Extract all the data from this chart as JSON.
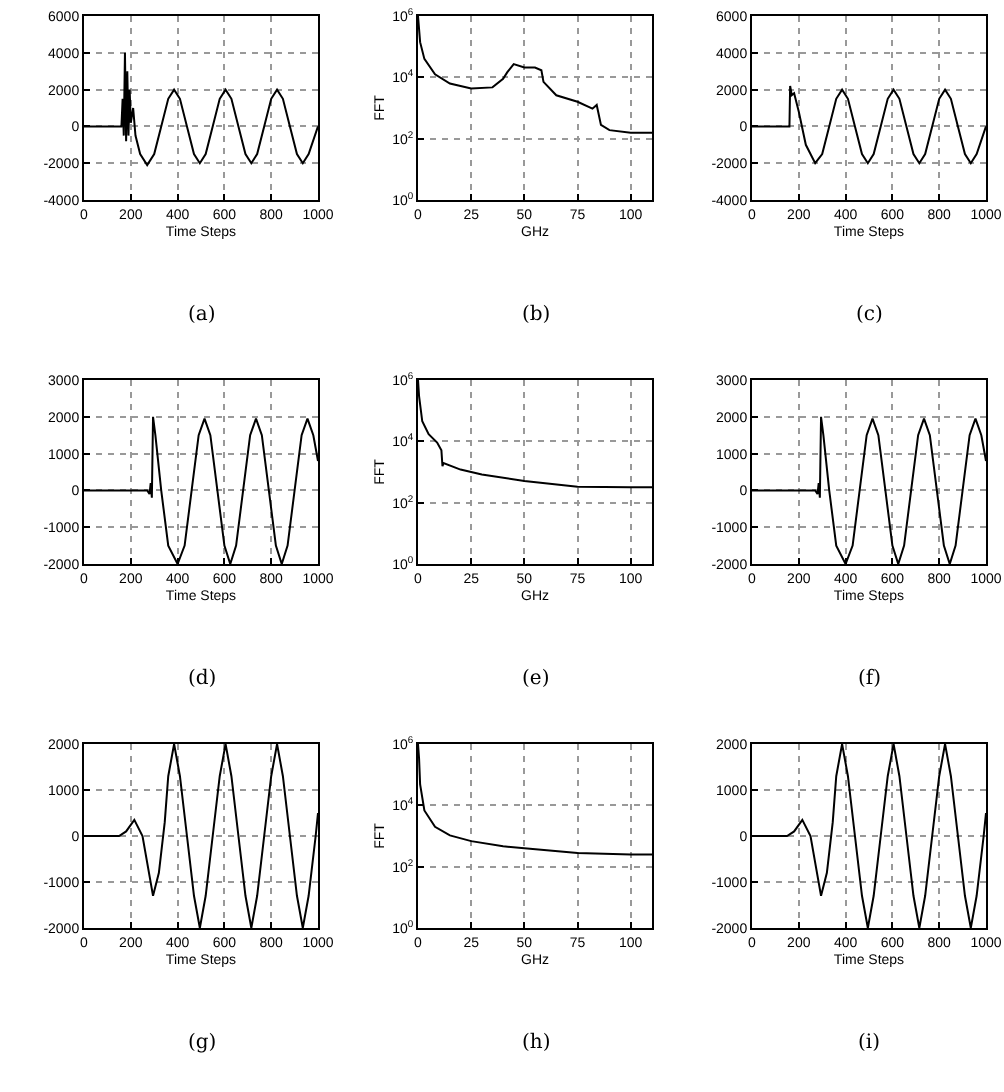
{
  "chart_data": [
    {
      "type": "line",
      "xlabel": "Time Steps",
      "annotations": [
        "(a)"
      ],
      "xlim": [
        0,
        1000
      ],
      "ylim": [
        -4000,
        6000
      ],
      "xticks": [
        0,
        200,
        400,
        600,
        800,
        1000
      ],
      "yticks": [
        -4000,
        -2000,
        0,
        2000,
        4000,
        6000
      ],
      "grid": true,
      "x": [
        0,
        160,
        165,
        170,
        175,
        180,
        185,
        190,
        195,
        200,
        210,
        220,
        240,
        270,
        300,
        330,
        360,
        385,
        410,
        440,
        470,
        495,
        520,
        550,
        580,
        605,
        630,
        660,
        690,
        715,
        740,
        770,
        800,
        825,
        850,
        880,
        910,
        935,
        960,
        1000
      ],
      "series": [
        {
          "color": "#000000",
          "values": [
            0,
            0,
            1500,
            -500,
            4000,
            -800,
            3000,
            -500,
            2000,
            200,
            1000,
            -500,
            -1500,
            -2100,
            -1500,
            0,
            1500,
            2000,
            1500,
            0,
            -1500,
            -2000,
            -1500,
            0,
            1500,
            2000,
            1500,
            0,
            -1500,
            -2000,
            -1500,
            0,
            1500,
            2000,
            1500,
            0,
            -1500,
            -2000,
            -1500,
            0
          ]
        }
      ]
    },
    {
      "type": "line",
      "xlabel": "GHz",
      "ylabel": "FFT",
      "annotations": [
        "(b)"
      ],
      "xlim": [
        0,
        110
      ],
      "ylim": [
        1,
        1000000
      ],
      "xticks": [
        0,
        25,
        50,
        75,
        100
      ],
      "yticks": [
        {
          "value": 1,
          "label": "10$^{0}$"
        },
        {
          "value": 100,
          "label": "10$^{2}$"
        },
        {
          "value": 10000,
          "label": "10$^{4}$"
        },
        {
          "value": 1000000,
          "label": "10$^{6}$"
        }
      ],
      "log": "y",
      "grid": true,
      "x": [
        0,
        1,
        3,
        8,
        15,
        25,
        35,
        40,
        42,
        45,
        50,
        55,
        58,
        59,
        65,
        75,
        82,
        84,
        86,
        90,
        100,
        110
      ],
      "series": [
        {
          "color": "#000000",
          "values": [
            1000000,
            140000,
            40000,
            12600,
            6300,
            4300,
            4700,
            8900,
            14800,
            27000,
            21000,
            21000,
            17000,
            7100,
            2600,
            1600,
            950,
            1260,
            280,
            190,
            155,
            155
          ]
        }
      ]
    },
    {
      "type": "line",
      "xlabel": "Time Steps",
      "annotations": [
        "(c)"
      ],
      "xlim": [
        0,
        1000
      ],
      "ylim": [
        -4000,
        6000
      ],
      "xticks": [
        0,
        200,
        400,
        600,
        800,
        1000
      ],
      "yticks": [
        -4000,
        -2000,
        0,
        2000,
        4000,
        6000
      ],
      "grid": true,
      "x": [
        0,
        160,
        163,
        170,
        180,
        200,
        230,
        270,
        300,
        330,
        360,
        385,
        410,
        440,
        470,
        495,
        520,
        550,
        580,
        605,
        630,
        660,
        690,
        715,
        740,
        770,
        800,
        825,
        850,
        880,
        910,
        935,
        960,
        1000
      ],
      "series": [
        {
          "color": "#000000",
          "values": [
            0,
            0,
            2200,
            1700,
            1800,
            800,
            -1000,
            -2000,
            -1500,
            0,
            1500,
            2000,
            1500,
            0,
            -1500,
            -2000,
            -1500,
            0,
            1500,
            2000,
            1500,
            0,
            -1500,
            -2000,
            -1500,
            0,
            1500,
            2000,
            1500,
            0,
            -1500,
            -2000,
            -1500,
            0
          ]
        }
      ]
    },
    {
      "type": "line",
      "xlabel": "Time Steps",
      "annotations": [
        "(d)"
      ],
      "xlim": [
        0,
        1000
      ],
      "ylim": [
        -2000,
        3000
      ],
      "xticks": [
        0,
        200,
        400,
        600,
        800,
        1000
      ],
      "yticks": [
        -2000,
        -1000,
        0,
        1000,
        2000,
        3000
      ],
      "grid": true,
      "x": [
        0,
        270,
        280,
        285,
        290,
        295,
        305,
        330,
        360,
        400,
        430,
        460,
        490,
        515,
        540,
        570,
        600,
        625,
        650,
        680,
        710,
        735,
        760,
        790,
        820,
        845,
        870,
        900,
        930,
        955,
        980,
        1000
      ],
      "series": [
        {
          "color": "#000000",
          "values": [
            0,
            0,
            -100,
            200,
            -200,
            2000,
            1500,
            0,
            -1500,
            -2000,
            -1500,
            0,
            1500,
            1950,
            1500,
            0,
            -1500,
            -2000,
            -1500,
            0,
            1500,
            1950,
            1500,
            0,
            -1500,
            -2000,
            -1500,
            0,
            1500,
            1950,
            1500,
            800
          ]
        }
      ]
    },
    {
      "type": "line",
      "xlabel": "GHz",
      "ylabel": "FFT",
      "annotations": [
        "(e)"
      ],
      "xlim": [
        0,
        110
      ],
      "ylim": [
        1,
        1000000
      ],
      "xticks": [
        0,
        25,
        50,
        75,
        100
      ],
      "yticks": [
        {
          "value": 1,
          "label": "10$^{0}$"
        },
        {
          "value": 100,
          "label": "10$^{2}$"
        },
        {
          "value": 10000,
          "label": "10$^{4}$"
        },
        {
          "value": 1000000,
          "label": "10$^{6}$"
        }
      ],
      "log": "y",
      "grid": true,
      "x": [
        0,
        0.5,
        2,
        5,
        9,
        11,
        11.5,
        12,
        20,
        30,
        50,
        75,
        100,
        110
      ],
      "series": [
        {
          "color": "#000000",
          "values": [
            1000000,
            300000,
            45000,
            17000,
            9100,
            5100,
            1550,
            1950,
            1200,
            830,
            510,
            330,
            320,
            320
          ]
        }
      ]
    },
    {
      "type": "line",
      "xlabel": "Time Steps",
      "annotations": [
        "(f)"
      ],
      "xlim": [
        0,
        1000
      ],
      "ylim": [
        -2000,
        3000
      ],
      "xticks": [
        0,
        200,
        400,
        600,
        800,
        1000
      ],
      "yticks": [
        -2000,
        -1000,
        0,
        1000,
        2000,
        3000
      ],
      "grid": true,
      "x": [
        0,
        270,
        280,
        285,
        290,
        295,
        305,
        330,
        360,
        400,
        430,
        460,
        490,
        515,
        540,
        570,
        600,
        625,
        650,
        680,
        710,
        735,
        760,
        790,
        820,
        845,
        870,
        900,
        930,
        955,
        980,
        1000
      ],
      "series": [
        {
          "color": "#000000",
          "values": [
            0,
            0,
            -100,
            200,
            -200,
            2000,
            1500,
            0,
            -1500,
            -2000,
            -1500,
            0,
            1500,
            1950,
            1500,
            0,
            -1500,
            -2000,
            -1500,
            0,
            1500,
            1950,
            1500,
            0,
            -1500,
            -2000,
            -1500,
            0,
            1500,
            1950,
            1500,
            800
          ]
        }
      ]
    },
    {
      "type": "line",
      "xlabel": "Time Steps",
      "annotations": [
        "(g)"
      ],
      "xlim": [
        0,
        1000
      ],
      "ylim": [
        -2000,
        2000
      ],
      "xticks": [
        0,
        200,
        400,
        600,
        800,
        1000
      ],
      "yticks": [
        -2000,
        -1000,
        0,
        1000,
        2000
      ],
      "grid": true,
      "x": [
        0,
        150,
        180,
        215,
        250,
        295,
        320,
        345,
        360,
        385,
        410,
        440,
        470,
        495,
        520,
        550,
        580,
        605,
        630,
        660,
        690,
        715,
        740,
        770,
        800,
        825,
        850,
        880,
        910,
        935,
        960,
        990,
        1000
      ],
      "series": [
        {
          "color": "#000000",
          "values": [
            0,
            0,
            100,
            350,
            0,
            -1300,
            -800,
            300,
            1300,
            2000,
            1300,
            0,
            -1300,
            -2000,
            -1300,
            0,
            1300,
            2000,
            1300,
            0,
            -1300,
            -2000,
            -1300,
            0,
            1300,
            2000,
            1300,
            0,
            -1300,
            -2000,
            -1300,
            0,
            500
          ]
        }
      ]
    },
    {
      "type": "line",
      "xlabel": "GHz",
      "ylabel": "FFT",
      "annotations": [
        "(h)"
      ],
      "xlim": [
        0,
        110
      ],
      "ylim": [
        1,
        1000000
      ],
      "xticks": [
        0,
        25,
        50,
        75,
        100
      ],
      "yticks": [
        {
          "value": 1,
          "label": "10$^{0}$"
        },
        {
          "value": 100,
          "label": "10$^{2}$"
        },
        {
          "value": 10000,
          "label": "10$^{4}$"
        },
        {
          "value": 1000000,
          "label": "10$^{6}$"
        }
      ],
      "log": "y",
      "grid": true,
      "x": [
        0,
        0.5,
        1,
        3,
        8,
        15,
        25,
        40,
        50,
        75,
        100,
        110
      ],
      "series": [
        {
          "color": "#000000",
          "values": [
            1000000,
            340000,
            48000,
            6800,
            2000,
            1050,
            680,
            460,
            400,
            280,
            250,
            250
          ]
        }
      ]
    },
    {
      "type": "line",
      "xlabel": "Time Steps",
      "annotations": [
        "(i)"
      ],
      "xlim": [
        0,
        1000
      ],
      "ylim": [
        -2000,
        2000
      ],
      "xticks": [
        0,
        200,
        400,
        600,
        800,
        1000
      ],
      "yticks": [
        -2000,
        -1000,
        0,
        1000,
        2000
      ],
      "grid": true,
      "x": [
        0,
        150,
        180,
        215,
        250,
        295,
        320,
        345,
        360,
        385,
        410,
        440,
        470,
        495,
        520,
        550,
        580,
        605,
        630,
        660,
        690,
        715,
        740,
        770,
        800,
        825,
        850,
        880,
        910,
        935,
        960,
        990,
        1000
      ],
      "series": [
        {
          "color": "#000000",
          "values": [
            0,
            0,
            100,
            350,
            0,
            -1300,
            -800,
            300,
            1300,
            2000,
            1300,
            0,
            -1300,
            -2000,
            -1300,
            0,
            1300,
            2000,
            1300,
            0,
            -1300,
            -2000,
            -1300,
            0,
            1300,
            2000,
            1300,
            0,
            -1300,
            -2000,
            -1300,
            0,
            500
          ]
        }
      ]
    }
  ]
}
